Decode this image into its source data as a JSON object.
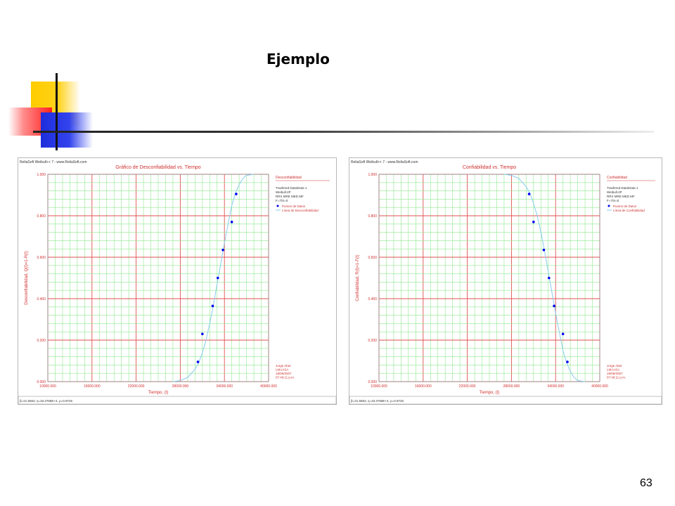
{
  "slide": {
    "title": "Ejemplo",
    "page_number": "63"
  },
  "colors": {
    "grid_major": "#e05050",
    "grid_minor": "#8ee88e",
    "text": "#d03030",
    "points": "#0000ee",
    "curve": "#88ccee"
  },
  "chart_data": [
    {
      "type": "scatter",
      "window_title": "ReliaSoft Weibull++ 7 - www.ReliaSoft.com",
      "title": "Gráfico de Desconfiabilidad vs. Tiempo",
      "xlabel": "Tiempo, (t)",
      "ylabel": "Desconfiabilidad, Q(t)=1-R(t)",
      "xlim": [
        10000,
        40000
      ],
      "ylim": [
        0,
        1
      ],
      "x_ticks": [
        "10000.000",
        "16000.000",
        "22000.000",
        "28000.000",
        "34000.000",
        "40000.000"
      ],
      "y_ticks": [
        "0.000",
        "0.200",
        "0.400",
        "0.600",
        "0.800",
        "1.000"
      ],
      "grid": true,
      "legend_position": "right",
      "legend_title": "Desconfiabilidad",
      "info_lines": [
        "Trasfered Data\\Data 1",
        "Weibull-2P",
        "RRX MRE MED MF",
        "F=7/S=0"
      ],
      "legend_entries": [
        "Puntos de Datos",
        "Línea de Desconfiabilidad"
      ],
      "footer_lines": [
        "Jorge Abet",
        "LMAASA",
        "19/06/2007",
        "07:49:11 p.m."
      ],
      "status_text": "β=21.5563, η=33.3758E+4, ρ=0.9726",
      "series": [
        {
          "name": "Puntos de Datos",
          "x": [
            30400,
            31000,
            32400,
            33100,
            33800,
            35000,
            35600
          ],
          "y": [
            0.095,
            0.23,
            0.365,
            0.5,
            0.635,
            0.77,
            0.905
          ]
        },
        {
          "name": "Línea de Desconfiabilidad",
          "x": [
            27000,
            28000,
            29000,
            30000,
            30500,
            31000,
            31500,
            32000,
            32500,
            33000,
            33500,
            34000,
            34500,
            35000,
            35500,
            36000,
            36500,
            37000,
            38000
          ],
          "y": [
            0.0,
            0.005,
            0.02,
            0.06,
            0.09,
            0.14,
            0.2,
            0.28,
            0.37,
            0.47,
            0.57,
            0.67,
            0.76,
            0.85,
            0.91,
            0.95,
            0.98,
            0.995,
            1.0
          ]
        }
      ]
    },
    {
      "type": "scatter",
      "window_title": "ReliaSoft Weibull++ 7 - www.ReliaSoft.com",
      "title": "Confiabilidad vs. Tiempo",
      "xlabel": "Tiempo, (t)",
      "ylabel": "Confiabilidad, R(t)=1-F(t)",
      "xlim": [
        10000,
        40000
      ],
      "ylim": [
        0,
        1
      ],
      "x_ticks": [
        "10000.000",
        "16000.000",
        "22000.000",
        "28000.000",
        "34000.000",
        "40000.000"
      ],
      "y_ticks": [
        "0.000",
        "0.200",
        "0.400",
        "0.600",
        "0.800",
        "1.000"
      ],
      "grid": true,
      "legend_position": "right",
      "legend_title": "Confiabilidad",
      "info_lines": [
        "Trasfered Data\\Data 1",
        "Weibull-2P",
        "RRX MRE MED MF",
        "F=7/S=0"
      ],
      "legend_entries": [
        "Puntos de Datos",
        "Línea de Confiabilidad"
      ],
      "footer_lines": [
        "Jorge Abet",
        "LMAASA",
        "19/06/2007",
        "07:49:11 p.m."
      ],
      "status_text": "β=21.5563, η=33.3758E+4, ρ=0.9726",
      "series": [
        {
          "name": "Puntos de Datos",
          "x": [
            30400,
            31000,
            32400,
            33100,
            33800,
            35000,
            35600
          ],
          "y": [
            0.905,
            0.77,
            0.635,
            0.5,
            0.365,
            0.23,
            0.095
          ]
        },
        {
          "name": "Línea de Confiabilidad",
          "x": [
            27000,
            28000,
            29000,
            30000,
            30500,
            31000,
            31500,
            32000,
            32500,
            33000,
            33500,
            34000,
            34500,
            35000,
            35500,
            36000,
            36500,
            37000,
            38000
          ],
          "y": [
            1.0,
            0.995,
            0.98,
            0.94,
            0.91,
            0.86,
            0.8,
            0.72,
            0.63,
            0.53,
            0.43,
            0.33,
            0.24,
            0.15,
            0.09,
            0.05,
            0.02,
            0.005,
            0.0
          ]
        }
      ]
    }
  ]
}
